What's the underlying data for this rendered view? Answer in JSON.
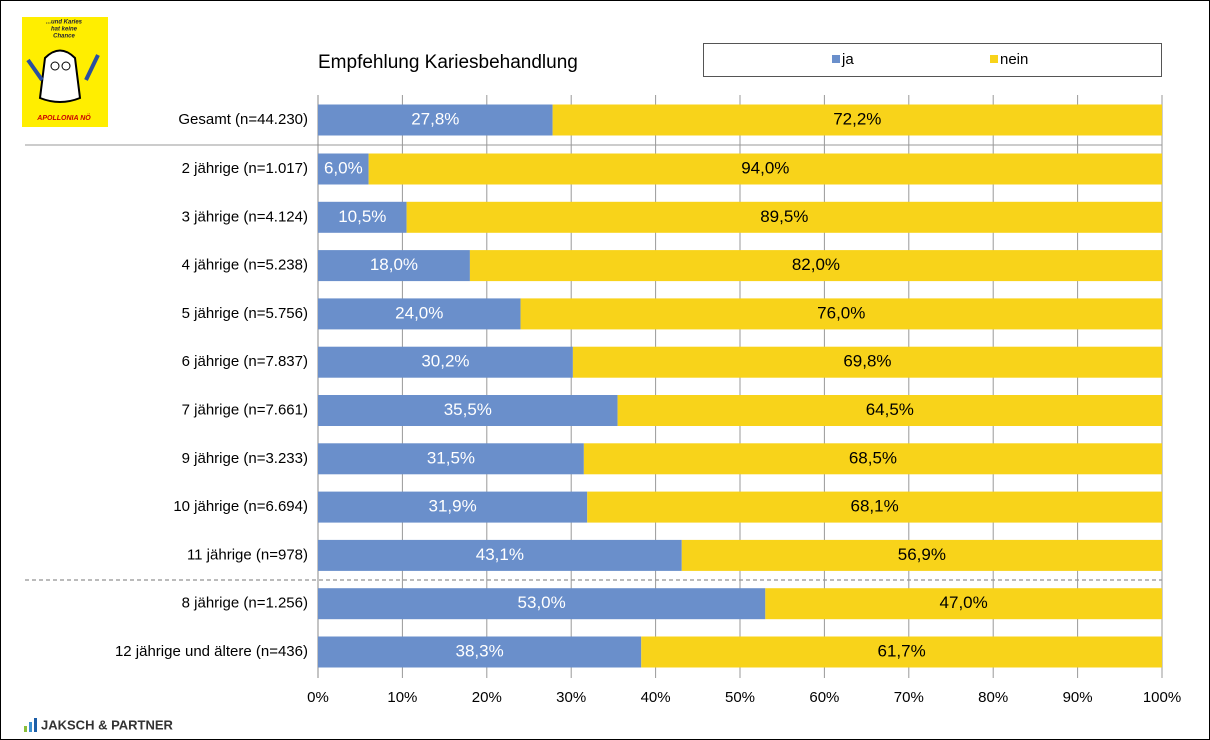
{
  "chart_data": {
    "type": "stacked-bar-horizontal",
    "title": "Empfehlung Kariesbehandlung",
    "categories": [
      "Gesamt (n=44.230)",
      "2 jährige (n=1.017)",
      "3 jährige (n=4.124)",
      "4 jährige (n=5.238)",
      "5 jährige (n=5.756)",
      "6 jährige (n=7.837)",
      "7 jährige (n=7.661)",
      "9 jährige (n=3.233)",
      "10 jährige (n=6.694)",
      "11 jährige (n=978)",
      "8 jährige (n=1.256)",
      "12 jährige und ältere (n=436)"
    ],
    "series": [
      {
        "name": "ja",
        "color": "#6a8fcb",
        "label_color": "#ffffff",
        "values": [
          27.8,
          6.0,
          10.5,
          18.0,
          24.0,
          30.2,
          35.5,
          31.5,
          31.9,
          43.1,
          53.0,
          38.3
        ],
        "value_labels": [
          "27,8%",
          "6,0%",
          "10,5%",
          "18,0%",
          "24,0%",
          "30,2%",
          "35,5%",
          "31,5%",
          "31,9%",
          "43,1%",
          "53,0%",
          "38,3%"
        ]
      },
      {
        "name": "nein",
        "color": "#f8d31a",
        "label_color": "#000000",
        "values": [
          72.2,
          94.0,
          89.5,
          82.0,
          76.0,
          69.8,
          64.5,
          68.5,
          68.1,
          56.9,
          47.0,
          61.7
        ],
        "value_labels": [
          "72,2%",
          "94,0%",
          "89,5%",
          "82,0%",
          "76,0%",
          "69,8%",
          "64,5%",
          "68,5%",
          "68,1%",
          "56,9%",
          "47,0%",
          "61,7%"
        ]
      }
    ],
    "xlim": [
      0,
      100
    ],
    "xticks": [
      {
        "value": 0,
        "label": "0%"
      },
      {
        "value": 10,
        "label": "10%"
      },
      {
        "value": 20,
        "label": "20%"
      },
      {
        "value": 30,
        "label": "30%"
      },
      {
        "value": 40,
        "label": "40%"
      },
      {
        "value": 50,
        "label": "50%"
      },
      {
        "value": 60,
        "label": "60%"
      },
      {
        "value": 70,
        "label": "70%"
      },
      {
        "value": 80,
        "label": "80%"
      },
      {
        "value": 90,
        "label": "90%"
      },
      {
        "value": 100,
        "label": "100%"
      }
    ],
    "grid": true,
    "legend": "top-right"
  },
  "logo": {
    "lines": [
      "...und Karies",
      "hat keine",
      "Chance"
    ],
    "name": "APOLLONIA NÖ"
  },
  "footer": "JAKSCH & PARTNER"
}
